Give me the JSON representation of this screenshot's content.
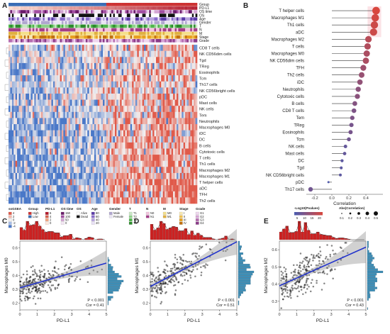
{
  "panels": {
    "a": "A",
    "b": "B",
    "c": "C",
    "d": "D",
    "e": "E"
  },
  "heatmap": {
    "annotation_tracks": [
      "Group",
      "PD-L1",
      "OS time",
      "OS",
      "Age",
      "Gender",
      "T",
      "N",
      "M",
      "Stage",
      "Grade"
    ],
    "cell_types": [
      "CD8 T cells",
      "NK CD56dim cells",
      "Tgd",
      "TReg",
      "Eosinophils",
      "Tcm",
      "Th17 cells",
      "NK CD56bright cells",
      "pDC",
      "Mast cells",
      "NK cells",
      "Tem",
      "Neutrophils",
      "Macrophages M0",
      "iDC",
      "DC",
      "B cells",
      "Cytotoxic cells",
      "T cells",
      "Th1 cells",
      "Macrophages M2",
      "Macrophages M1",
      "T helper cells",
      "aDC",
      "TFH",
      "Th2 cells"
    ],
    "colors": {
      "high": "#e05a4a",
      "low": "#4a78c8",
      "mid": "#f4f1f0",
      "group_high": "#cc3333",
      "group_low": "#3a6db5"
    },
    "legend": [
      {
        "title": "ssGSEA",
        "items": [
          "4",
          "2",
          "0",
          "-2",
          "-4"
        ]
      },
      {
        "title": "Group",
        "items": [
          "High",
          "Low"
        ]
      },
      {
        "title": "PD-L1",
        "items": [
          "6",
          "4",
          "2",
          "0"
        ]
      },
      {
        "title": "OS time",
        "items": [
          "150",
          "100",
          "50",
          "0"
        ]
      },
      {
        "title": "OS",
        "items": [
          "Alive",
          "Dead"
        ]
      },
      {
        "title": "Age",
        "items": [
          "80",
          "60",
          "40",
          "20"
        ]
      },
      {
        "title": "Gender",
        "items": [
          "Male",
          "Female"
        ]
      },
      {
        "title": "T",
        "items": [
          "T1",
          "T2",
          "T3",
          "T4"
        ]
      },
      {
        "title": "N",
        "items": [
          "N0",
          "N1"
        ]
      },
      {
        "title": "M",
        "items": [
          "M0",
          "M1"
        ]
      },
      {
        "title": "Stage",
        "items": [
          "I",
          "II",
          "III",
          "IV"
        ]
      },
      {
        "title": "Grade",
        "items": [
          "G1",
          "G2",
          "G3",
          "G4"
        ]
      }
    ]
  },
  "lollipop_legend": {
    "p_title": "-Log10(Pvalues)",
    "p_ticks": [
      "5",
      "10",
      "15",
      "20"
    ],
    "size_title": "Abs(Correlation)",
    "size_ticks": [
      "0.1",
      "0.2",
      "0.3",
      "0.4",
      "0.5"
    ]
  },
  "scatter_panels": [
    {
      "xlabel": "PD-L1",
      "ylabel": "Macrophages M0",
      "p_text": "P < 0.001",
      "cor_text": "Cor = 0.41",
      "yticks": [
        "0.2",
        "0.3",
        "0.4",
        "0.5",
        "0.6"
      ],
      "xticks": [
        "0",
        "1",
        "2",
        "3",
        "4",
        "5"
      ]
    },
    {
      "xlabel": "PD-L1",
      "ylabel": "Macrophages M1",
      "p_text": "P < 0.001",
      "cor_text": "Cor = 0.51",
      "yticks": [
        "0.2",
        "0.3",
        "0.4",
        "0.5",
        "0.6"
      ],
      "xticks": [
        "0",
        "1",
        "2",
        "3",
        "4",
        "5"
      ]
    },
    {
      "xlabel": "PD-L1",
      "ylabel": "Macrophages M2",
      "p_text": "P < 0.001",
      "cor_text": "Cor = 0.43",
      "yticks": [
        "0.3",
        "0.4",
        "0.5",
        "0.6"
      ],
      "xticks": [
        "0",
        "1",
        "2",
        "3",
        "4",
        "5"
      ]
    }
  ],
  "chart_data": [
    {
      "type": "heatmap",
      "rows": [
        "CD8 T cells",
        "NK CD56dim cells",
        "Tgd",
        "TReg",
        "Eosinophils",
        "Tcm",
        "Th17 cells",
        "NK CD56bright cells",
        "pDC",
        "Mast cells",
        "NK cells",
        "Tem",
        "Neutrophils",
        "Macrophages M0",
        "iDC",
        "DC",
        "B cells",
        "Cytotoxic cells",
        "T cells",
        "Th1 cells",
        "Macrophages M2",
        "Macrophages M1",
        "T helper cells",
        "aDC",
        "TFH",
        "Th2 cells"
      ],
      "groups": [
        "Low",
        "High"
      ],
      "color_scale": [
        -4,
        4
      ]
    },
    {
      "type": "scatter",
      "xlabel": "Correlation",
      "xlim": [
        -0.3,
        0.6
      ],
      "xticks": [
        "-0.2",
        "0.0",
        "0.2",
        "0.4"
      ],
      "categories": [
        "T helper cells",
        "Macrophages M1",
        "Th1 cells",
        "aDC",
        "Macrophages M2",
        "T cells",
        "Macrophages M0",
        "NK CD56dim cells",
        "TFH",
        "Th2 cells",
        "iDC",
        "Neutrophils",
        "Cytotoxic cells",
        "B cells",
        "CD8 T cells",
        "Tem",
        "TReg",
        "Eosinophils",
        "Tcm",
        "NK cells",
        "Mast cells",
        "DC",
        "Tgd",
        "NK CD56bright cells",
        "pDC",
        "Th17 cells"
      ],
      "values": [
        0.52,
        0.51,
        0.5,
        0.49,
        0.43,
        0.42,
        0.41,
        0.4,
        0.37,
        0.35,
        0.33,
        0.31,
        0.3,
        0.27,
        0.26,
        0.24,
        0.23,
        0.22,
        0.2,
        0.16,
        0.15,
        0.12,
        0.11,
        0.1,
        -0.04,
        -0.25
      ],
      "neglog10_p": [
        22,
        21,
        20,
        20,
        17,
        16,
        15,
        15,
        13,
        12,
        11,
        10,
        10,
        9,
        8,
        8,
        7,
        7,
        6,
        4,
        4,
        3,
        3,
        3,
        1,
        6
      ]
    },
    {
      "type": "scatter",
      "xlabel": "PD-L1",
      "ylabel": "Macrophages M0",
      "xlim": [
        0,
        5
      ],
      "ylim": [
        0.15,
        0.65
      ],
      "fit": {
        "slope": 0.036,
        "intercept": 0.31
      },
      "cor": 0.41,
      "p": "< 0.001"
    },
    {
      "type": "scatter",
      "xlabel": "PD-L1",
      "ylabel": "Macrophages M1",
      "xlim": [
        0,
        5
      ],
      "ylim": [
        0.15,
        0.65
      ],
      "fit": {
        "slope": 0.065,
        "intercept": 0.32
      },
      "cor": 0.51,
      "p": "< 0.001"
    },
    {
      "type": "scatter",
      "xlabel": "PD-L1",
      "ylabel": "Macrophages M2",
      "xlim": [
        0,
        5
      ],
      "ylim": [
        0.25,
        0.65
      ],
      "fit": {
        "slope": 0.045,
        "intercept": 0.39
      },
      "cor": 0.43,
      "p": "< 0.001"
    }
  ]
}
